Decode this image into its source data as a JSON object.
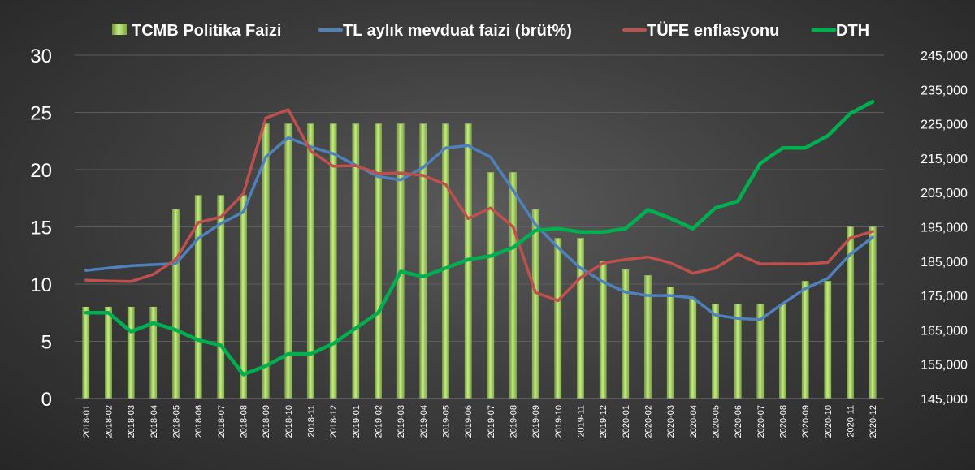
{
  "chart_data": {
    "type": "bar+line",
    "categories": [
      "2018-01",
      "2018-02",
      "2018-03",
      "2018-04",
      "2018-05",
      "2018-06",
      "2018-07",
      "2018-08",
      "2018-09",
      "2018-10",
      "2018-11",
      "2018-12",
      "2019-01",
      "2019-02",
      "2019-03",
      "2019-04",
      "2019-05",
      "2019-06",
      "2019-07",
      "2019-08",
      "2019-09",
      "2019-10",
      "2019-11",
      "2019-12",
      "2020-01",
      "2020-02",
      "2020-03",
      "2020-04",
      "2020-05",
      "2020-06",
      "2020-07",
      "2020-08",
      "2020-09",
      "2020-10",
      "2020-11",
      "2020-12"
    ],
    "y_left": {
      "min": 0,
      "max": 30,
      "ticks": [
        "0",
        "5",
        "10",
        "15",
        "20",
        "25",
        "30"
      ]
    },
    "y_right": {
      "min": 145000,
      "max": 245000,
      "ticks": [
        "145,000",
        "155,000",
        "165,000",
        "175,000",
        "185,000",
        "195,000",
        "205,000",
        "215,000",
        "225,000",
        "235,000",
        "245,000"
      ]
    },
    "grid": true,
    "legend_position": "top",
    "series": [
      {
        "name": "TCMB Politika Faizi",
        "kind": "bar",
        "axis": "left",
        "color": "#92d050",
        "values": [
          8,
          8,
          8,
          8,
          16.5,
          17.75,
          17.75,
          17.75,
          24,
          24,
          24,
          24,
          24,
          24,
          24,
          24,
          24,
          24,
          19.75,
          19.75,
          16.5,
          14,
          14,
          12,
          11.25,
          10.75,
          9.75,
          8.75,
          8.25,
          8.25,
          8.25,
          8.25,
          10.25,
          10.25,
          15,
          15
        ]
      },
      {
        "name": "TL aylık mevduat faizi (brüt%)",
        "kind": "line",
        "axis": "left",
        "color": "#4f81bd",
        "values": [
          11.2,
          11.4,
          11.6,
          11.7,
          11.8,
          14,
          15.3,
          16.3,
          21.1,
          22.8,
          22,
          21.4,
          20.4,
          19.4,
          19.1,
          20.2,
          21.9,
          22.1,
          21.1,
          18.2,
          15.2,
          13.2,
          11.4,
          10.2,
          9.3,
          9,
          9,
          8.8,
          7.3,
          7,
          6.9,
          8.3,
          9.6,
          10.5,
          12.6,
          14.1
        ]
      },
      {
        "name": "TÜFE enflasyonu",
        "kind": "line",
        "axis": "left",
        "color": "#c0504d",
        "values": [
          10.35,
          10.26,
          10.23,
          10.85,
          12.15,
          15.39,
          15.85,
          17.9,
          24.52,
          25.24,
          21.62,
          20.3,
          20.35,
          19.67,
          19.71,
          19.5,
          18.71,
          15.72,
          16.65,
          15.01,
          9.26,
          8.55,
          10.56,
          11.84,
          12.15,
          12.37,
          11.86,
          10.94,
          11.39,
          12.62,
          11.76,
          11.77,
          11.75,
          11.89,
          14.03,
          14.6
        ]
      },
      {
        "name": "DTH",
        "kind": "line",
        "axis": "right",
        "color": "#00b050",
        "values": [
          170000,
          170000,
          164500,
          167000,
          165000,
          162000,
          160500,
          152000,
          154500,
          158000,
          158000,
          161000,
          165500,
          170000,
          182000,
          180500,
          183000,
          185500,
          186500,
          189000,
          194000,
          194500,
          193500,
          193500,
          194500,
          200000,
          197500,
          194500,
          200500,
          202500,
          213500,
          218000,
          218000,
          221500,
          228000,
          231500
        ]
      }
    ]
  }
}
